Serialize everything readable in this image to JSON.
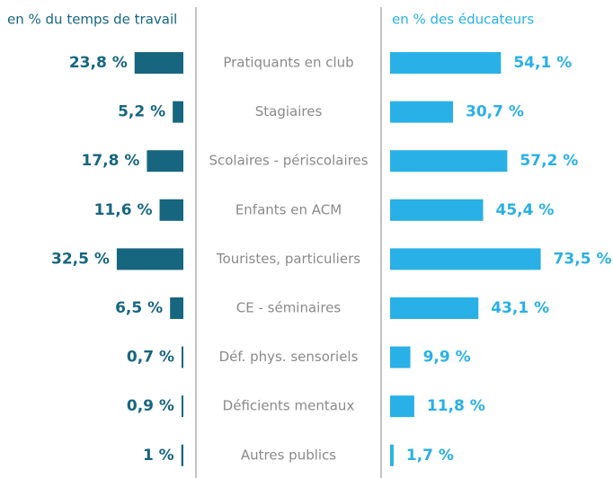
{
  "chart_data": {
    "type": "butterfly",
    "categories": [
      "Pratiquants en club",
      "Stagiaires",
      "Scolaires - périscolaires",
      "Enfants en ACM",
      "Touristes, particuliers",
      "CE - séminaires",
      "Déf. phys. sensoriels",
      "Déficients mentaux",
      "Autres publics"
    ],
    "series": [
      {
        "name": "en % du temps de travail",
        "color": "#17667f",
        "values": [
          23.8,
          5.2,
          17.8,
          11.6,
          32.5,
          6.5,
          0.7,
          0.9,
          1
        ],
        "value_labels": [
          "23,8 %",
          "5,2 %",
          "17,8 %",
          "11,6 %",
          "32,5 %",
          "6,5 %",
          "0,7 %",
          "0,9 %",
          "1 %"
        ]
      },
      {
        "name": "en % des éducateurs",
        "color": "#29b0e6",
        "values": [
          54.1,
          30.7,
          57.2,
          45.4,
          73.5,
          43.1,
          9.9,
          11.8,
          1.7
        ],
        "value_labels": [
          "54,1 %",
          "30,7 %",
          "57,2 %",
          "45,4 %",
          "73,5 %",
          "43,1 %",
          "9,9 %",
          "11,8 %",
          "1,7 %"
        ]
      }
    ]
  }
}
